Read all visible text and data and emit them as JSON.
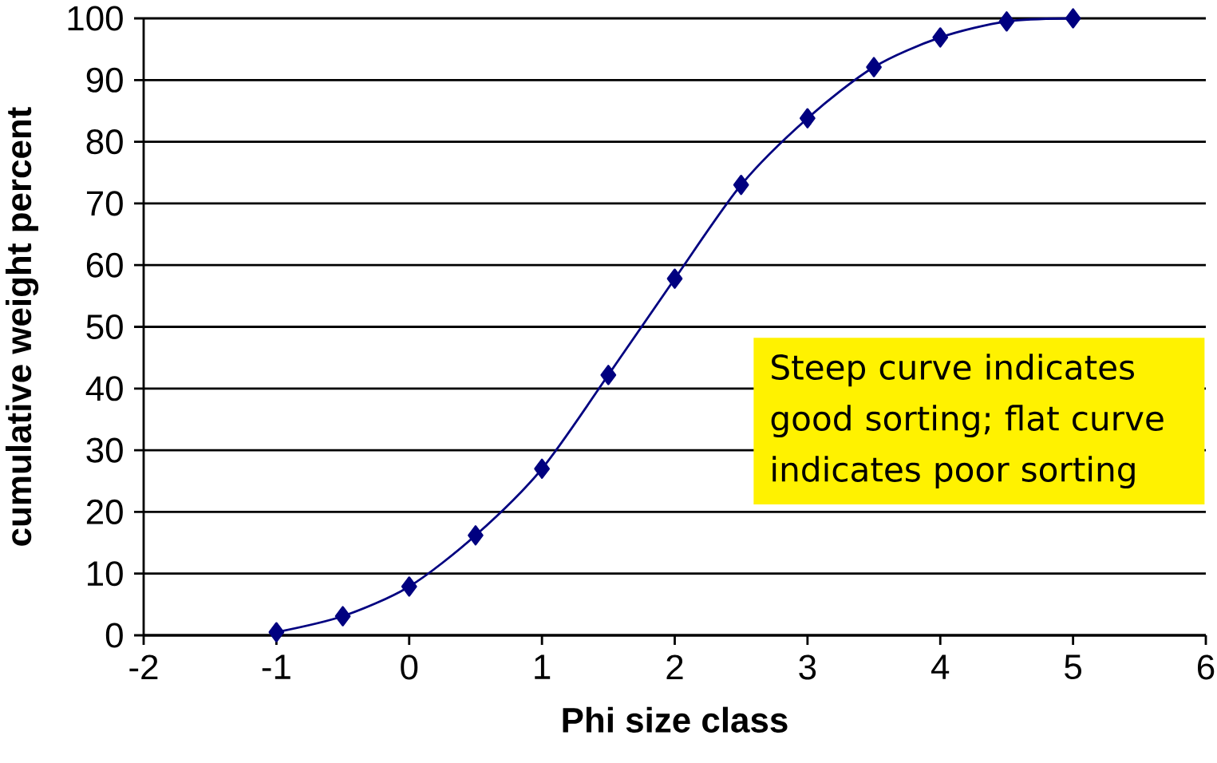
{
  "chart_data": {
    "type": "line",
    "xlabel": "Phi size class",
    "ylabel": "cumulative weight percent",
    "x": [
      -1,
      -0.5,
      0,
      0.5,
      1,
      1.5,
      2,
      2.5,
      3,
      3.5,
      4,
      4.5,
      5
    ],
    "series": [
      {
        "color": "#000080",
        "values": [
          0.5,
          3.1,
          7.9,
          16.2,
          27.0,
          42.2,
          57.8,
          73.0,
          83.8,
          92.1,
          96.9,
          99.5,
          100
        ]
      }
    ],
    "xlim": [
      -2,
      6
    ],
    "ylim": [
      0,
      100
    ],
    "xticks": [
      -2,
      -1,
      0,
      1,
      2,
      3,
      4,
      5,
      6
    ],
    "yticks": [
      0,
      10,
      20,
      30,
      40,
      50,
      60,
      70,
      80,
      90,
      100
    ],
    "grid": "y",
    "marker": "diamond",
    "annotations": [
      "Steep curve indicates good sorting; flat curve indicates poor sorting"
    ]
  }
}
